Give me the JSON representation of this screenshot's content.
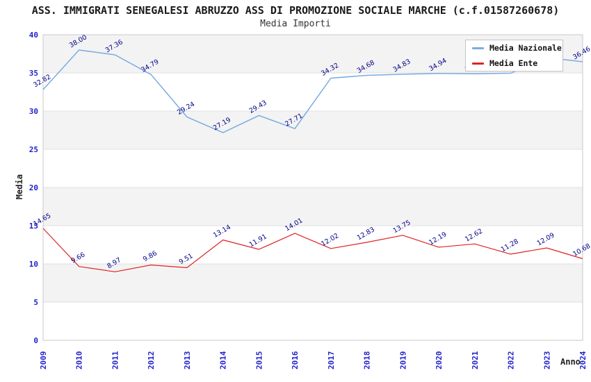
{
  "header": {
    "title": "ASS. IMMIGRATI SENEGALESI ABRUZZO ASS DI PROMOZIONE SOCIALE MARCHE (c.f.01587260678)",
    "subtitle": "Media Importi"
  },
  "legend": {
    "items": [
      {
        "label": "Media Nazionale",
        "color": "#7aabe0"
      },
      {
        "label": "Media Ente",
        "color": "#e02222"
      }
    ]
  },
  "axes": {
    "y_label": "Media",
    "x_label": "Anno",
    "y_ticks": [
      0,
      5,
      10,
      15,
      20,
      25,
      30,
      35,
      40
    ],
    "tick_color": "#2222cc",
    "data_label_color": "#00008b"
  },
  "chart_data": {
    "type": "line",
    "title": "Media Importi",
    "x": [
      "2009",
      "2010",
      "2011",
      "2012",
      "2013",
      "2014",
      "2015",
      "2016",
      "2017",
      "2018",
      "2019",
      "2020",
      "2021",
      "2022",
      "2023",
      "2024"
    ],
    "series": [
      {
        "name": "Media Nazionale",
        "color": "#7aabe0",
        "values": [
          32.82,
          38.0,
          37.36,
          34.79,
          29.24,
          27.19,
          29.43,
          27.71,
          34.32,
          34.68,
          34.83,
          34.94,
          34.88,
          34.96,
          37.0,
          36.46
        ]
      },
      {
        "name": "Media Ente",
        "color": "#e02222",
        "values": [
          14.65,
          9.66,
          8.97,
          9.86,
          9.51,
          13.14,
          11.91,
          14.01,
          12.02,
          12.83,
          13.75,
          12.19,
          12.62,
          11.28,
          12.09,
          10.68
        ]
      }
    ],
    "ylim": [
      0,
      40
    ],
    "xlabel": "Anno",
    "ylabel": "Media",
    "legend_position": "top-right",
    "grid": "horizontal-bands-every-5",
    "band_colors": [
      "#f3f3f3",
      "#ffffff"
    ],
    "plot_border_color": "#c8c8c8",
    "gridline_color": "#e0e0e0"
  }
}
